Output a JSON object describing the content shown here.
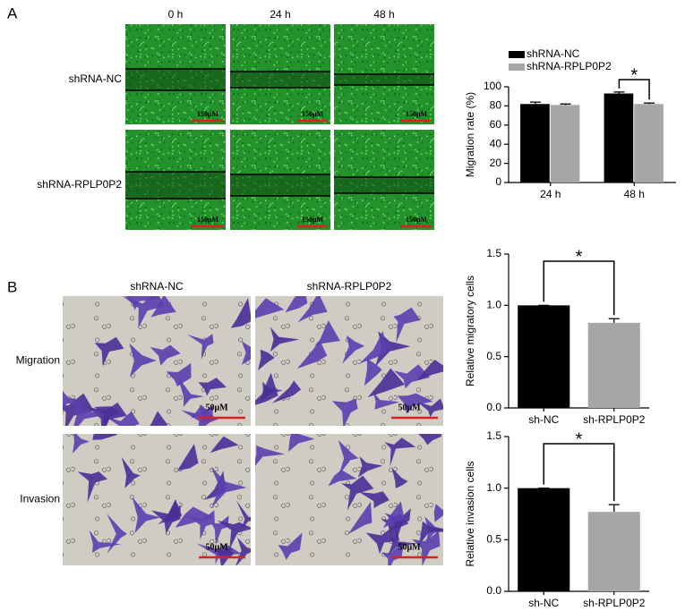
{
  "panels": {
    "A": {
      "label": "A",
      "columns": [
        "0 h",
        "24 h",
        "48 h"
      ],
      "rows": [
        "shRNA-NC",
        "shRNA-RPLP0P2"
      ],
      "scale_label": "150μM"
    },
    "B": {
      "label": "B",
      "columns": [
        "shRNA-NC",
        "shRNA-RPLP0P2"
      ],
      "rows": [
        "Migration",
        "Invasion"
      ],
      "scale_label": "50μM"
    }
  },
  "chart_data": [
    {
      "type": "bar",
      "categories": [
        "24 h",
        "48 h"
      ],
      "series": [
        {
          "name": "shRNA-NC",
          "color": "#000000",
          "values": [
            82,
            93
          ],
          "errors": [
            2,
            1.5
          ]
        },
        {
          "name": "shRNA-RPLP0P2",
          "color": "#a6a6a8",
          "values": [
            81,
            82
          ],
          "errors": [
            1,
            1
          ]
        }
      ],
      "y_label": "Migration rate (%)",
      "ylim": [
        0,
        100
      ],
      "yticks": [
        0,
        20,
        40,
        60,
        80,
        100
      ],
      "annotation": "*",
      "legend": "top-left"
    },
    {
      "type": "bar",
      "categories": [
        "sh-NC",
        "sh-RPLP0P2"
      ],
      "values": [
        1.0,
        0.83
      ],
      "errors": [
        0,
        0.04
      ],
      "colors": [
        "#000000",
        "#a6a6a8"
      ],
      "y_label": "Relative migratory cells",
      "ylim": [
        0,
        1.5
      ],
      "yticks": [
        {
          "value": 0,
          "label": "0.0"
        },
        0.5,
        {
          "value": 1,
          "label": "1.0"
        },
        1.5
      ],
      "annotation": "*"
    },
    {
      "type": "bar",
      "categories": [
        "sh-NC",
        "sh-RPLP0P2"
      ],
      "values": [
        1.0,
        0.77
      ],
      "errors": [
        0,
        0.07
      ],
      "colors": [
        "#000000",
        "#a6a6a8"
      ],
      "y_label": "Relative invasion cells",
      "ylim": [
        0,
        1.5
      ],
      "yticks": [
        {
          "value": 0,
          "label": "0.0"
        },
        0.5,
        {
          "value": 1,
          "label": "1.0"
        },
        1.5
      ],
      "annotation": "*"
    }
  ]
}
